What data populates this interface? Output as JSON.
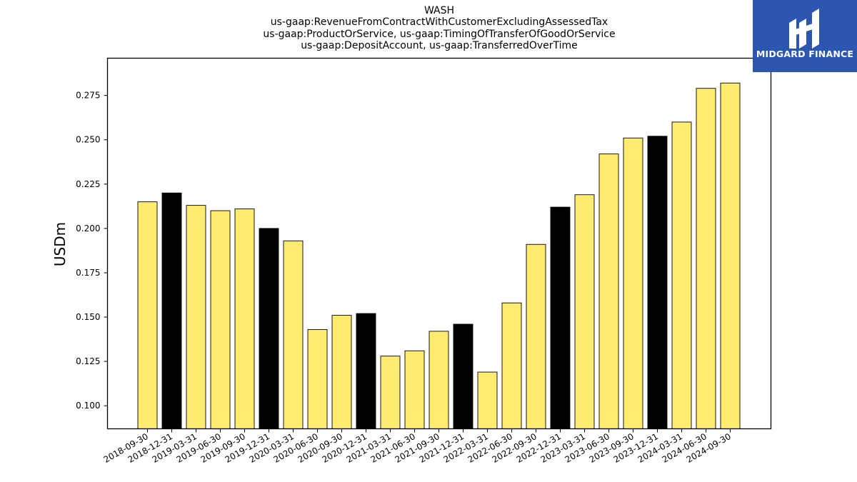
{
  "logo": {
    "text": "MIDGARD FINANCE",
    "background": "#2c56b0",
    "icon": "midgard-finance-logo-icon"
  },
  "chart_data": {
    "type": "bar",
    "title": [
      "WASH",
      "us-gaap:RevenueFromContractWithCustomerExcludingAssessedTax",
      "us-gaap:ProductOrService, us-gaap:TimingOfTransferOfGoodOrService",
      "us-gaap:DepositAccount, us-gaap:TransferredOverTime"
    ],
    "xlabel": "",
    "ylabel": "USDm",
    "ylim": [
      0.087,
      0.296
    ],
    "yticks": [
      "0.100",
      "0.125",
      "0.150",
      "0.175",
      "0.200",
      "0.225",
      "0.250",
      "0.275"
    ],
    "grid": false,
    "colors": {
      "quarter": "#ffeb70",
      "year_end": "#000000",
      "edge": "#000000"
    },
    "categories": [
      "2018-09-30",
      "2018-12-31",
      "2019-03-31",
      "2019-06-30",
      "2019-09-30",
      "2019-12-31",
      "2020-03-31",
      "2020-06-30",
      "2020-09-30",
      "2020-12-31",
      "2021-03-31",
      "2021-06-30",
      "2021-09-30",
      "2021-12-31",
      "2022-03-31",
      "2022-06-30",
      "2022-09-30",
      "2022-12-31",
      "2023-03-31",
      "2023-06-30",
      "2023-09-30",
      "2023-12-31",
      "2024-03-31",
      "2024-06-30",
      "2024-09-30"
    ],
    "values": [
      0.215,
      0.22,
      0.213,
      0.21,
      0.211,
      0.2,
      0.193,
      0.143,
      0.151,
      0.152,
      0.128,
      0.131,
      0.142,
      0.146,
      0.119,
      0.158,
      0.191,
      0.212,
      0.219,
      0.242,
      0.251,
      0.252,
      0.26,
      0.279,
      0.282
    ]
  }
}
